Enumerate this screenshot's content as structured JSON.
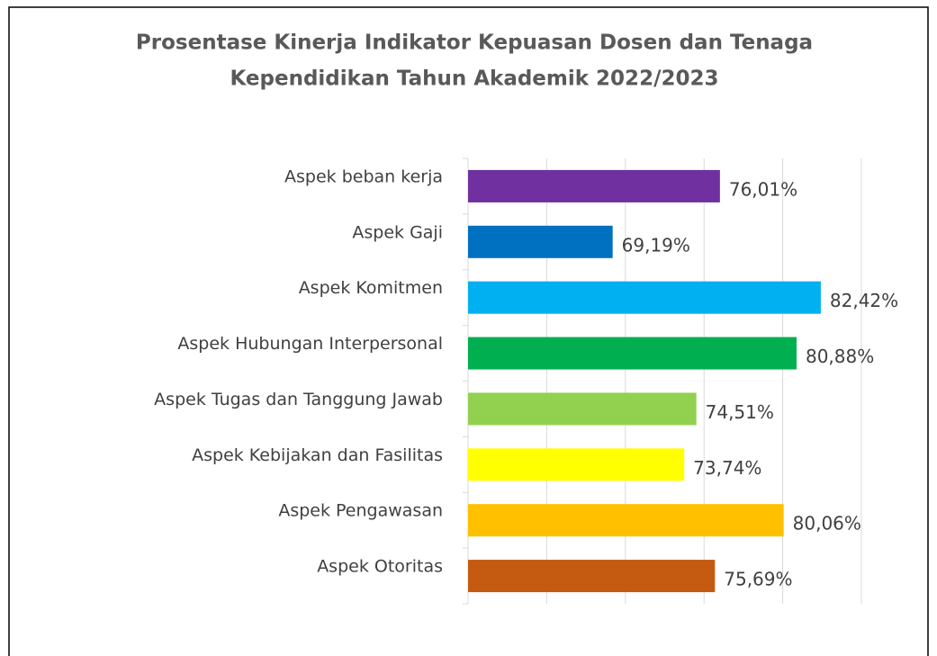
{
  "chart_data": {
    "type": "barh",
    "title": [
      "Prosentase Kinerja Indikator Kepuasan Dosen dan Tenaga",
      "Kependidikan Tahun Akademik 2022/2023"
    ],
    "categories": [
      "Aspek beban kerja",
      "Aspek Gaji",
      "Aspek Komitmen",
      "Aspek Hubungan Interpersonal",
      "Aspek Tugas dan Tanggung Jawab",
      "Aspek Kebijakan dan Fasilitas",
      "Aspek Pengawasan",
      "Aspek Otoritas"
    ],
    "values": [
      76.01,
      69.19,
      82.42,
      80.88,
      74.51,
      73.74,
      80.06,
      75.69
    ],
    "value_labels": [
      "76,01%",
      "69,19%",
      "82,42%",
      "80,88%",
      "74,51%",
      "73,74%",
      "80,06%",
      "75,69%"
    ],
    "colors": [
      "#7030a0",
      "#0070c0",
      "#00b0f0",
      "#00b050",
      "#92d050",
      "#ffff00",
      "#ffc000",
      "#c55a11"
    ],
    "xlim": [
      60,
      85
    ],
    "xticks": [
      60,
      65,
      70,
      75,
      80,
      85
    ],
    "grid": true
  }
}
